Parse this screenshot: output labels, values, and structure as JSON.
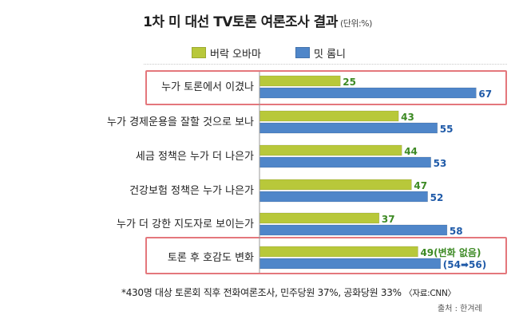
{
  "chart_data": {
    "type": "bar",
    "orientation": "horizontal",
    "title": "1차 미 대선 TV토론 여론조사 결과",
    "unit": "(단위:%)",
    "categories": [
      "누가 토론에서 이겼나",
      "누가 경제운용을 잘할 것으로 보나",
      "세금 정책은 누가 더 나은가",
      "건강보험 정책은 누가 나은가",
      "누가 더 강한 지도자로 보이는가",
      "토론 후 호감도 변화"
    ],
    "series": [
      {
        "name": "버락 오바마",
        "values": [
          25,
          43,
          44,
          47,
          37,
          49
        ],
        "color": "#b8c83a",
        "label_color": "#3d8a24"
      },
      {
        "name": "밋 롬니",
        "values": [
          67,
          55,
          53,
          52,
          58,
          56
        ],
        "color": "#4f86c9",
        "label_color": "#1f5aa8"
      }
    ],
    "data_labels": {
      "obama": [
        "25",
        "43",
        "44",
        "47",
        "37",
        "49(변화 없음)"
      ],
      "romney": [
        "67",
        "55",
        "53",
        "52",
        "58",
        "(54➡56)"
      ]
    },
    "highlighted_categories": [
      "누가 토론에서 이겼나",
      "토론 후 호감도 변화"
    ],
    "xlim": [
      0,
      70
    ],
    "grid": false,
    "legend_position": "top"
  },
  "footnote": {
    "text": "*430명 대상 토론회 직후 전화여론조사, 민주당원 37%, 공화당원 33%",
    "source": "〈자료:CNN〉"
  },
  "credit": "출처 : 한겨레",
  "colors": {
    "highlight_border": "#e4777c"
  }
}
